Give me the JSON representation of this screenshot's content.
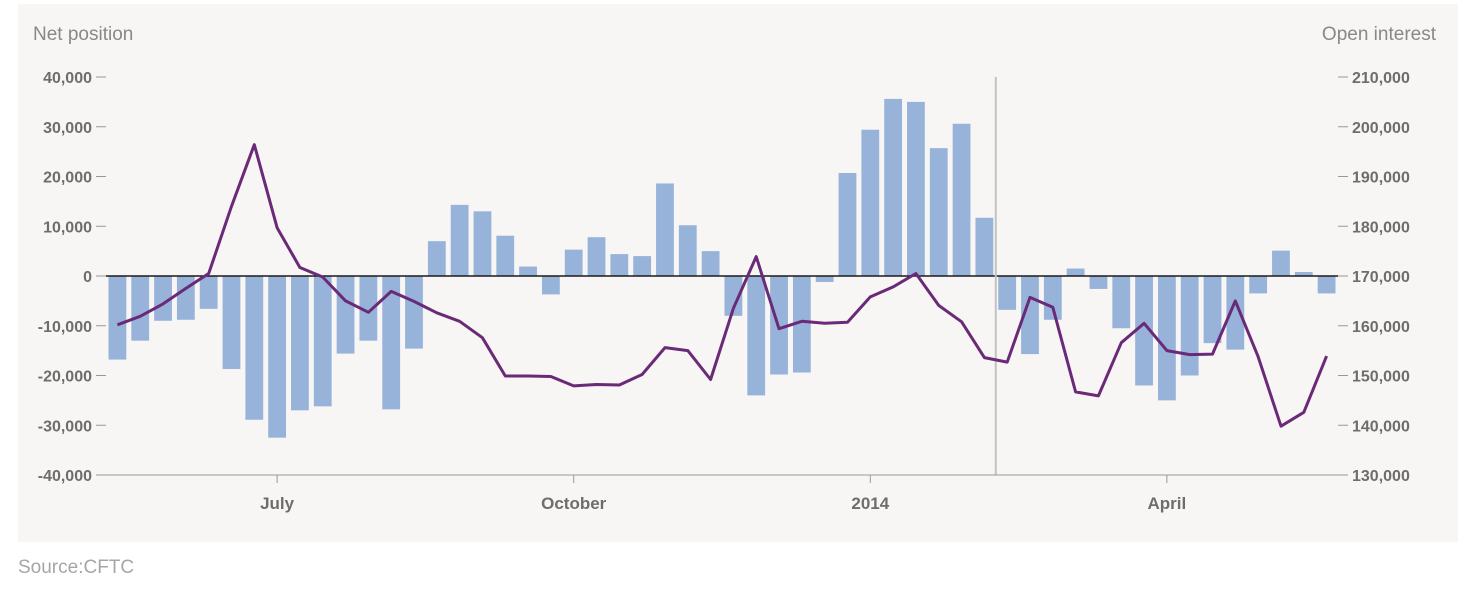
{
  "source": "Source:CFTC",
  "chart_data": {
    "type": "bar+line",
    "left_axis_title": "Net position",
    "right_axis_title": "Open interest",
    "x_labels": [
      "July",
      "October",
      "2014",
      "April"
    ],
    "left_ticks": [
      "40,000",
      "30,000",
      "20,000",
      "10,000",
      "0",
      "-10,000",
      "-20,000",
      "-30,000",
      "-40,000"
    ],
    "right_ticks": [
      "210,000",
      "200,000",
      "190,000",
      "180,000",
      "170,000",
      "160,000",
      "150,000",
      "140,000",
      "130,000"
    ],
    "ylim_left": [
      -40000,
      40000
    ],
    "ylim_right": [
      130000,
      210000
    ],
    "bar_color": "#97b3da",
    "line_color": "#6a2a78",
    "series": [
      {
        "name": "Net position",
        "type": "bar",
        "values": [
          -16800,
          -13000,
          -9000,
          -8800,
          -6600,
          -18700,
          -28900,
          -32500,
          -27000,
          -26200,
          -15600,
          -13000,
          -26800,
          -14600,
          7000,
          14300,
          13000,
          8100,
          1900,
          -3700,
          5300,
          7800,
          4400,
          4000,
          18600,
          10200,
          5000,
          -8000,
          -24000,
          -19800,
          -19400,
          -1200,
          20700,
          29400,
          35600,
          35000,
          25700,
          30600,
          11700,
          -6800,
          -15700,
          -8800,
          1500,
          -2600,
          -10500,
          -22000,
          -25000,
          -20000,
          -13500,
          -14800,
          -3500,
          5100,
          800,
          -3500
        ]
      },
      {
        "name": "Open interest",
        "type": "line",
        "values": [
          160200,
          161900,
          164400,
          167500,
          170500,
          184000,
          196400,
          179700,
          171700,
          169800,
          165000,
          162700,
          166900,
          164900,
          162600,
          160900,
          157600,
          149900,
          149900,
          149800,
          147900,
          148200,
          148100,
          150200,
          155600,
          155000,
          149200,
          163500,
          173900,
          159400,
          160900,
          160500,
          160700,
          165800,
          167800,
          170500,
          164100,
          160800,
          153600,
          152700,
          165700,
          163700,
          146700,
          145900,
          156600,
          160500,
          155000,
          154200,
          154300,
          165000,
          153800,
          139800,
          142600,
          153900
        ]
      }
    ],
    "grid": false,
    "legend": "none"
  }
}
